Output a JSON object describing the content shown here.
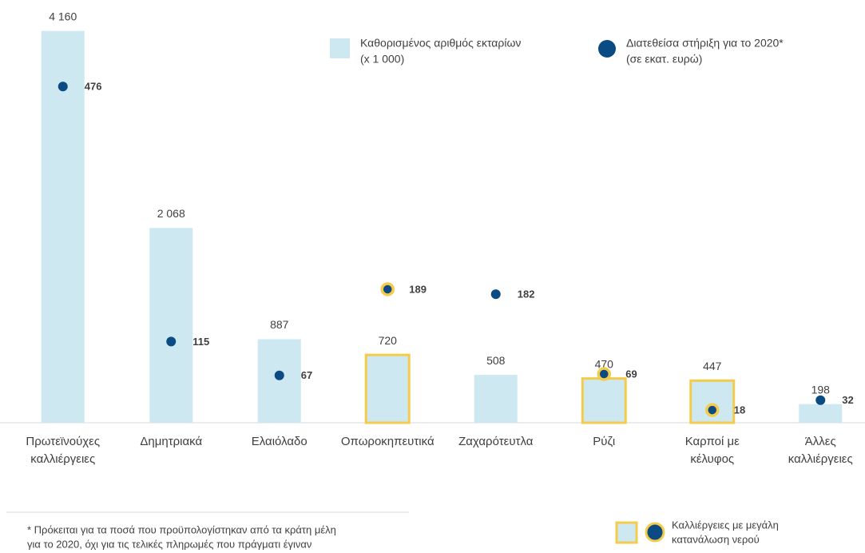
{
  "chart_data": {
    "type": "bar_dot",
    "categories": [
      [
        "Πρωτεϊνούχες",
        "καλλιέργειες"
      ],
      [
        "Δημητριακά"
      ],
      [
        "Ελαιόλαδο"
      ],
      [
        "Οπωροκηπευτικά"
      ],
      [
        "Ζαχαρότευτλα"
      ],
      [
        "Ρύζι"
      ],
      [
        "Καρποί με",
        "κέλυφος"
      ],
      [
        "Άλλες",
        "καλλιέργειες"
      ]
    ],
    "series": [
      {
        "name": [
          "Καθορισμένος αριθμός εκταρίων",
          "(x 1 000)"
        ],
        "color": "#cde8f1",
        "values": [
          4160,
          2068,
          887,
          720,
          508,
          470,
          447,
          198
        ],
        "value_labels": [
          "4 160",
          "2 068",
          "887",
          "720",
          "508",
          "470",
          "447",
          "198"
        ]
      },
      {
        "name": [
          "Διατεθείσα στήριξη για το 2020*",
          "(σε εκατ. ευρώ)"
        ],
        "color": "#0b4b84",
        "axis": "y2",
        "values": [
          476,
          115,
          67,
          189,
          182,
          69,
          18,
          32
        ]
      }
    ],
    "ylim": [
      0,
      4200
    ],
    "y2lim": [
      0,
      560
    ],
    "highlight": [
      false,
      false,
      false,
      true,
      false,
      true,
      true,
      false
    ],
    "highlight_color": "#f5cb4c",
    "highlight_label": [
      "Καλλιέργειες με μεγάλη",
      "κατανάλωση νερού"
    ],
    "footnote": [
      "* Πρόκειται για τα ποσά που προϋπολογίστηκαν από τα κράτη μέλη",
      "για το 2020, όχι για τις τελικές πληρωμές που πράγματι έγιναν"
    ]
  }
}
